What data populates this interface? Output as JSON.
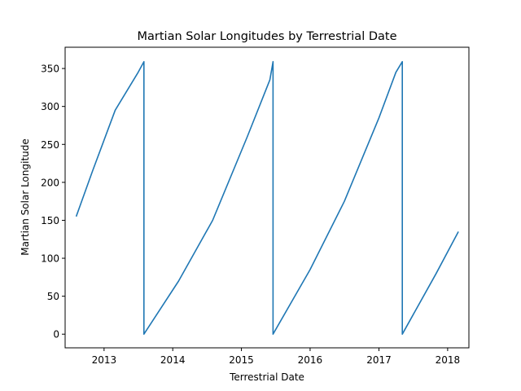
{
  "chart_data": {
    "type": "line",
    "title": "Martian Solar Longitudes by Terrestrial Date",
    "xlabel": "Terrestrial Date",
    "ylabel": "Martian Solar Longitude",
    "xlim": [
      "2012-06-08",
      "2018-04-24"
    ],
    "ylim": [
      -18,
      378
    ],
    "x_ticks": [
      "2013",
      "2014",
      "2015",
      "2016",
      "2017",
      "2018"
    ],
    "y_ticks": [
      0,
      50,
      100,
      150,
      200,
      250,
      300,
      350
    ],
    "grid": false,
    "series": [
      {
        "color": "#1f77b4",
        "x": [
          "2012-08-06",
          "2012-11-01",
          "2013-03-01",
          "2013-07-01",
          "2013-08-01",
          "2013-08-01",
          "2014-02-01",
          "2014-08-01",
          "2015-02-01",
          "2015-06-01",
          "2015-06-18",
          "2015-06-18",
          "2016-01-01",
          "2016-07-01",
          "2017-01-01",
          "2017-04-01",
          "2017-05-05",
          "2017-05-05",
          "2017-11-01",
          "2018-02-27"
        ],
        "y": [
          155,
          215,
          295,
          345,
          359,
          0,
          70,
          150,
          260,
          335,
          359,
          0,
          85,
          175,
          285,
          345,
          359,
          0,
          80,
          135
        ]
      }
    ]
  }
}
